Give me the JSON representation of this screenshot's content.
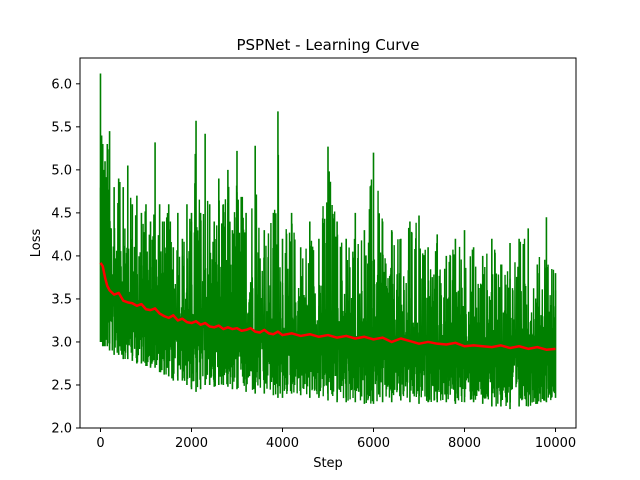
{
  "chart_data": {
    "type": "line",
    "title": "PSPNet - Learning Curve",
    "xlabel": "Step",
    "ylabel": "Loss",
    "xlim": [
      -450,
      10450
    ],
    "ylim": [
      2.0,
      6.3
    ],
    "xticks": [
      0,
      2000,
      4000,
      6000,
      8000,
      10000
    ],
    "yticks": [
      2.0,
      2.5,
      3.0,
      3.5,
      4.0,
      4.5,
      5.0,
      5.5,
      6.0
    ],
    "xtick_labels": [
      "0",
      "2000",
      "4000",
      "6000",
      "8000",
      "10000"
    ],
    "ytick_labels": [
      "2.0",
      "2.5",
      "3.0",
      "3.5",
      "4.0",
      "4.5",
      "5.0",
      "5.5",
      "6.0"
    ],
    "grid": false,
    "legend": "none",
    "series": [
      {
        "color": "#008000",
        "style": "raw",
        "x": [
          0,
          25,
          50,
          75,
          100,
          150,
          200,
          300,
          400,
          500,
          600,
          700,
          800,
          900,
          1000,
          1100,
          1200,
          1300,
          1400,
          1500,
          1600,
          1700,
          1800,
          1900,
          2000,
          2100,
          2200,
          2300,
          2400,
          2500,
          2600,
          2700,
          2800,
          2900,
          3000,
          3200,
          3400,
          3600,
          3800,
          3900,
          4000,
          4200,
          4400,
          4600,
          4800,
          5000,
          5200,
          5400,
          5600,
          5800,
          6000,
          6200,
          6400,
          6600,
          6800,
          7000,
          7200,
          7400,
          7600,
          7800,
          8000,
          8200,
          8400,
          8600,
          8800,
          9000,
          9200,
          9400,
          9600,
          9800,
          10000
        ],
        "min": [
          3.0,
          3.0,
          2.95,
          2.95,
          2.95,
          2.95,
          2.9,
          2.85,
          2.85,
          2.8,
          2.8,
          2.78,
          2.75,
          2.75,
          2.72,
          2.7,
          2.7,
          2.65,
          2.62,
          2.6,
          2.55,
          2.55,
          2.55,
          2.5,
          2.45,
          2.42,
          2.45,
          2.5,
          2.5,
          2.48,
          2.5,
          2.5,
          2.48,
          2.45,
          2.45,
          2.42,
          2.4,
          2.4,
          2.38,
          2.35,
          2.35,
          2.4,
          2.38,
          2.35,
          2.35,
          2.32,
          2.3,
          2.3,
          2.3,
          2.28,
          2.28,
          2.3,
          2.3,
          2.32,
          2.3,
          2.28,
          2.3,
          2.3,
          2.3,
          2.28,
          2.3,
          2.3,
          2.28,
          2.25,
          2.25,
          2.22,
          2.25,
          2.25,
          2.28,
          2.3,
          2.35
        ],
        "max": [
          6.12,
          5.4,
          5.3,
          5.0,
          5.1,
          5.3,
          5.45,
          4.8,
          4.9,
          4.8,
          5.05,
          4.6,
          4.7,
          4.5,
          4.6,
          4.4,
          5.32,
          4.6,
          4.4,
          4.6,
          4.1,
          4.5,
          4.2,
          4.6,
          4.5,
          5.57,
          4.5,
          5.42,
          4.6,
          4.4,
          4.9,
          4.6,
          5.0,
          4.3,
          5.22,
          4.5,
          5.28,
          4.3,
          4.5,
          5.68,
          4.2,
          4.5,
          4.1,
          4.4,
          4.2,
          5.27,
          4.4,
          4.2,
          4.5,
          4.3,
          5.2,
          4.4,
          4.3,
          4.2,
          4.4,
          4.47,
          4.1,
          4.25,
          4.0,
          4.2,
          4.3,
          4.1,
          4.0,
          4.2,
          3.9,
          4.15,
          4.2,
          4.32,
          3.9,
          4.45,
          3.8
        ],
        "mean": [
          3.93,
          3.88,
          3.82,
          3.75,
          3.68,
          3.62,
          3.58,
          3.54,
          3.5,
          3.46,
          3.44,
          3.42,
          3.4,
          3.38,
          3.36,
          3.34,
          3.32,
          3.3,
          3.29,
          3.28,
          3.27,
          3.26,
          3.25,
          3.24,
          3.23,
          3.22,
          3.21,
          3.2,
          3.19,
          3.18,
          3.18,
          3.17,
          3.16,
          3.16,
          3.15,
          3.14,
          3.13,
          3.12,
          3.11,
          3.1,
          3.1,
          3.09,
          3.08,
          3.07,
          3.06,
          3.06,
          3.05,
          3.04,
          3.04,
          3.03,
          3.02,
          3.02,
          3.01,
          3.0,
          3.0,
          2.99,
          2.99,
          2.98,
          2.98,
          2.97,
          2.97,
          2.96,
          2.96,
          2.95,
          2.95,
          2.94,
          2.94,
          2.93,
          2.93,
          2.92,
          2.92
        ]
      },
      {
        "color": "#ff0000",
        "style": "smoothed",
        "x": [
          0,
          50,
          100,
          150,
          200,
          300,
          400,
          500,
          600,
          700,
          800,
          900,
          1000,
          1100,
          1200,
          1300,
          1400,
          1500,
          1600,
          1700,
          1800,
          1900,
          2000,
          2100,
          2200,
          2300,
          2400,
          2500,
          2600,
          2700,
          2800,
          2900,
          3000,
          3100,
          3200,
          3300,
          3400,
          3500,
          3600,
          3700,
          3800,
          3900,
          4000,
          4200,
          4400,
          4600,
          4800,
          5000,
          5200,
          5400,
          5600,
          5800,
          6000,
          6200,
          6400,
          6600,
          6800,
          7000,
          7200,
          7400,
          7600,
          7800,
          8000,
          8200,
          8400,
          8600,
          8800,
          9000,
          9200,
          9400,
          9600,
          9800,
          10000
        ],
        "values": [
          3.92,
          3.88,
          3.75,
          3.65,
          3.6,
          3.55,
          3.57,
          3.48,
          3.46,
          3.45,
          3.42,
          3.44,
          3.38,
          3.37,
          3.39,
          3.33,
          3.3,
          3.28,
          3.31,
          3.25,
          3.27,
          3.23,
          3.22,
          3.24,
          3.2,
          3.22,
          3.18,
          3.17,
          3.19,
          3.15,
          3.17,
          3.15,
          3.16,
          3.13,
          3.14,
          3.16,
          3.12,
          3.11,
          3.14,
          3.1,
          3.09,
          3.12,
          3.08,
          3.1,
          3.07,
          3.09,
          3.06,
          3.08,
          3.05,
          3.07,
          3.04,
          3.06,
          3.03,
          3.05,
          3.0,
          3.04,
          3.01,
          2.98,
          3.0,
          2.98,
          2.97,
          2.99,
          2.95,
          2.96,
          2.95,
          2.94,
          2.96,
          2.93,
          2.95,
          2.92,
          2.94,
          2.91,
          2.92
        ]
      }
    ]
  }
}
